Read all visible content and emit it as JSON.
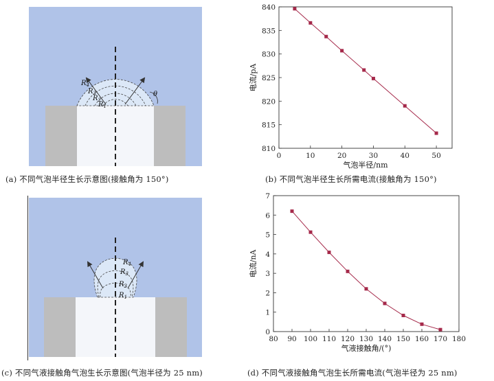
{
  "captions": {
    "a": "(a) 不同气泡半径生长示意图(接触角为 150°)",
    "b": "(b) 不同气泡半径生长所需电流(接触角为 150°)",
    "c": "(c) 不同气液接触角气泡生长示意图(气泡半径为 25 nm)",
    "d": "(d) 不同气液接触角气泡生长所需电流(气泡半径为 25 nm)"
  },
  "diagram_a": {
    "radius_labels": [
      "R",
      "R",
      "R",
      "R"
    ],
    "radius_subs": [
      "4",
      "3",
      "2",
      "1"
    ],
    "angle_label": "θ",
    "colors": {
      "water": "#b0c3e8",
      "wall": "#bdbdbd",
      "pore": "#f4f6fa",
      "bubble": "#dce8f7"
    }
  },
  "diagram_c": {
    "radius_labels": [
      "R",
      "R",
      "R",
      "R"
    ],
    "radius_subs": [
      "4",
      "3",
      "2",
      "1"
    ]
  },
  "chart_data": [
    {
      "type": "line",
      "x": [
        5,
        10,
        15,
        20,
        27,
        30,
        40,
        50
      ],
      "series": [
        {
          "values": [
            839.6,
            836.6,
            833.7,
            830.7,
            826.6,
            824.8,
            819.0,
            813.2
          ]
        }
      ],
      "xlabel": "气泡半径/nm",
      "ylabel": "电流/pA",
      "xlim": [
        0,
        55
      ],
      "ylim": [
        810,
        840
      ],
      "xticks": [
        0,
        10,
        20,
        30,
        40,
        50
      ],
      "yticks": [
        810,
        815,
        820,
        825,
        830,
        835,
        840
      ],
      "grid": false,
      "color": "#a5294a"
    },
    {
      "type": "line",
      "x": [
        90,
        100,
        110,
        120,
        130,
        140,
        150,
        160,
        170
      ],
      "series": [
        {
          "values": [
            6.2,
            5.12,
            4.08,
            3.1,
            2.2,
            1.45,
            0.83,
            0.38,
            0.1
          ]
        }
      ],
      "xlabel": "气液接触角/(°)",
      "ylabel": "电流/nA",
      "xlim": [
        80,
        180
      ],
      "ylim": [
        0,
        7
      ],
      "xticks": [
        80,
        90,
        100,
        110,
        120,
        130,
        140,
        150,
        160,
        170,
        180
      ],
      "yticks": [
        0,
        1,
        2,
        3,
        4,
        5,
        6,
        7
      ],
      "grid": false,
      "color": "#a5294a"
    }
  ]
}
